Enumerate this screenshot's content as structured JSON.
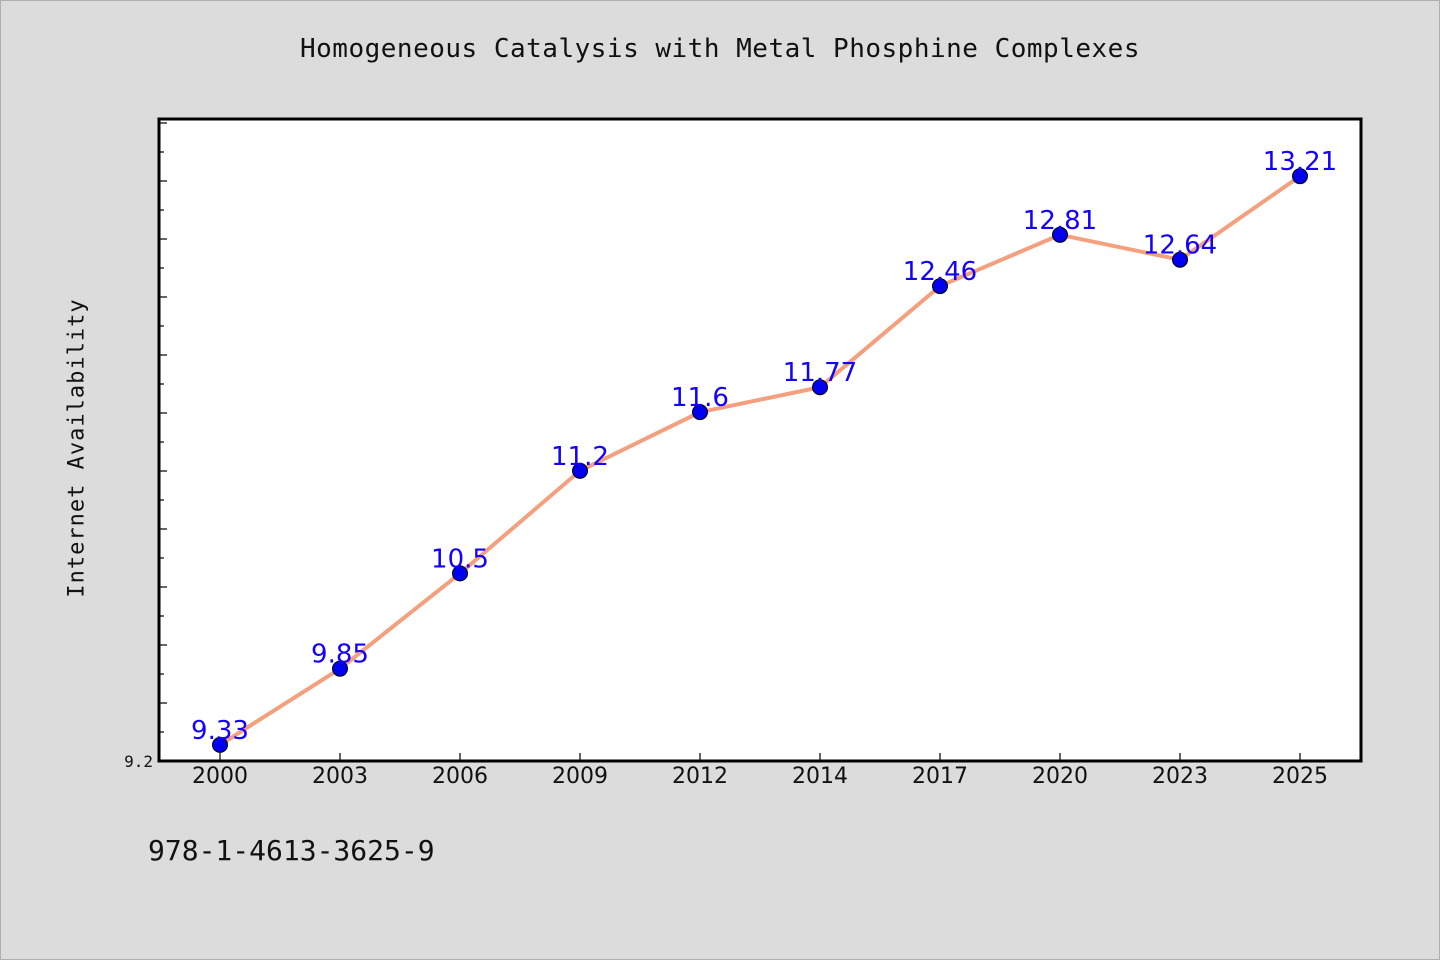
{
  "chart_data": {
    "type": "line",
    "title": "Homogeneous Catalysis with Metal Phosphine Complexes",
    "xlabel": "",
    "ylabel": "Internet Availability",
    "categories": [
      "2000",
      "2003",
      "2006",
      "2009",
      "2012",
      "2014",
      "2017",
      "2020",
      "2023",
      "2025"
    ],
    "series": [
      {
        "values": [
          9.33,
          9.85,
          10.5,
          11.2,
          11.6,
          11.77,
          12.46,
          12.81,
          12.64,
          13.21
        ],
        "labels": [
          "9.33",
          "9.85",
          "10.5",
          "11.2",
          "11.6",
          "11.77",
          "12.46",
          "12.81",
          "12.64",
          "13.21"
        ]
      }
    ],
    "ylim": [
      9.22,
      13.6
    ],
    "y_tick_labels": [
      "9.2"
    ],
    "y_min_value": 9.22,
    "grid": false,
    "legend": "none",
    "colors": {
      "line": "#f4a07e",
      "marker": "#0000ee",
      "data_label": "#1400ff",
      "background": "#dcdcdc",
      "plot_background": "#ffffff"
    }
  },
  "footer_note": "978-1-4613-3625-9"
}
